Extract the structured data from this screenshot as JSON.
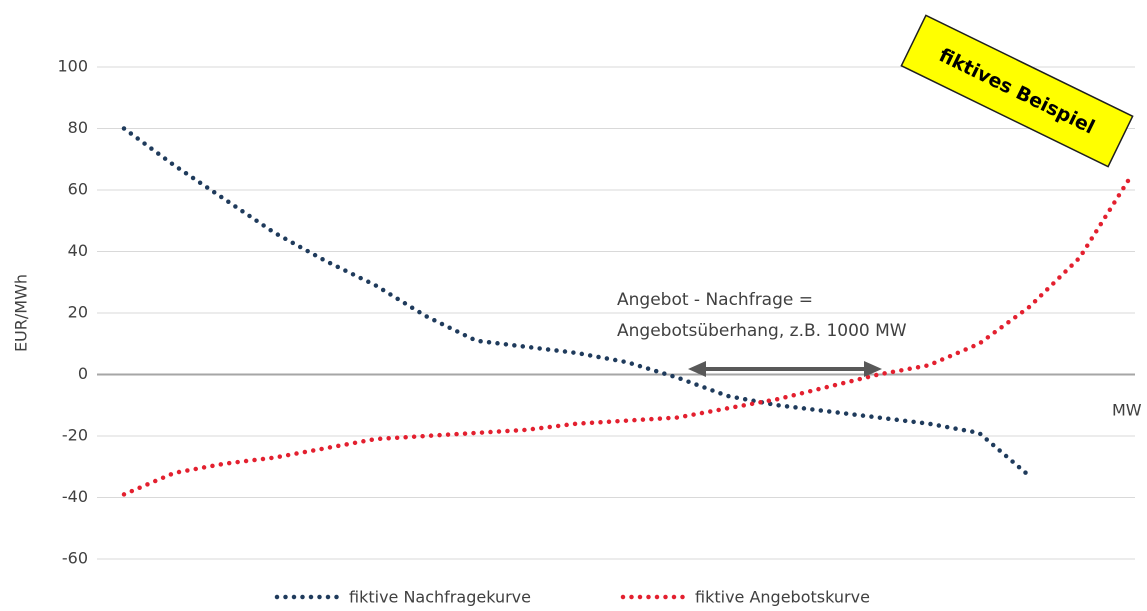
{
  "chart_data": {
    "type": "line",
    "y_label": "EUR/MWh",
    "x_label": "MW",
    "annotation": [
      "Angebot - Nachfrage =",
      "Angebotsüberhang, z.B. 1000 MW"
    ],
    "stamp": "fiktives Beispiel",
    "categories": [
      null,
      null,
      null,
      null,
      null,
      null,
      null,
      null,
      null,
      null,
      null,
      null,
      null,
      null,
      null,
      null,
      null,
      null,
      null,
      null,
      null
    ],
    "series": [
      {
        "name": "fiktive Nachfragekurve",
        "color": "#1f3b5c",
        "values": [
          80,
          68,
          57,
          46,
          37,
          29,
          19,
          11,
          9,
          7,
          4,
          -1,
          -7,
          -10,
          -12,
          -14,
          -16,
          -19,
          -33,
          null,
          null
        ]
      },
      {
        "name": "fiktive Angebotskurve",
        "color": "#e3202f",
        "values": [
          -39,
          -32,
          -29,
          -27,
          -24,
          -21,
          -20,
          -19,
          -18,
          -16,
          -15,
          -14,
          -11,
          -8,
          -4,
          0,
          3,
          10,
          22,
          38,
          64
        ]
      }
    ],
    "ylim": [
      -60,
      100
    ],
    "yticks": [
      -60,
      -40,
      -20,
      0,
      20,
      40,
      60,
      80,
      100
    ],
    "grid": true
  }
}
